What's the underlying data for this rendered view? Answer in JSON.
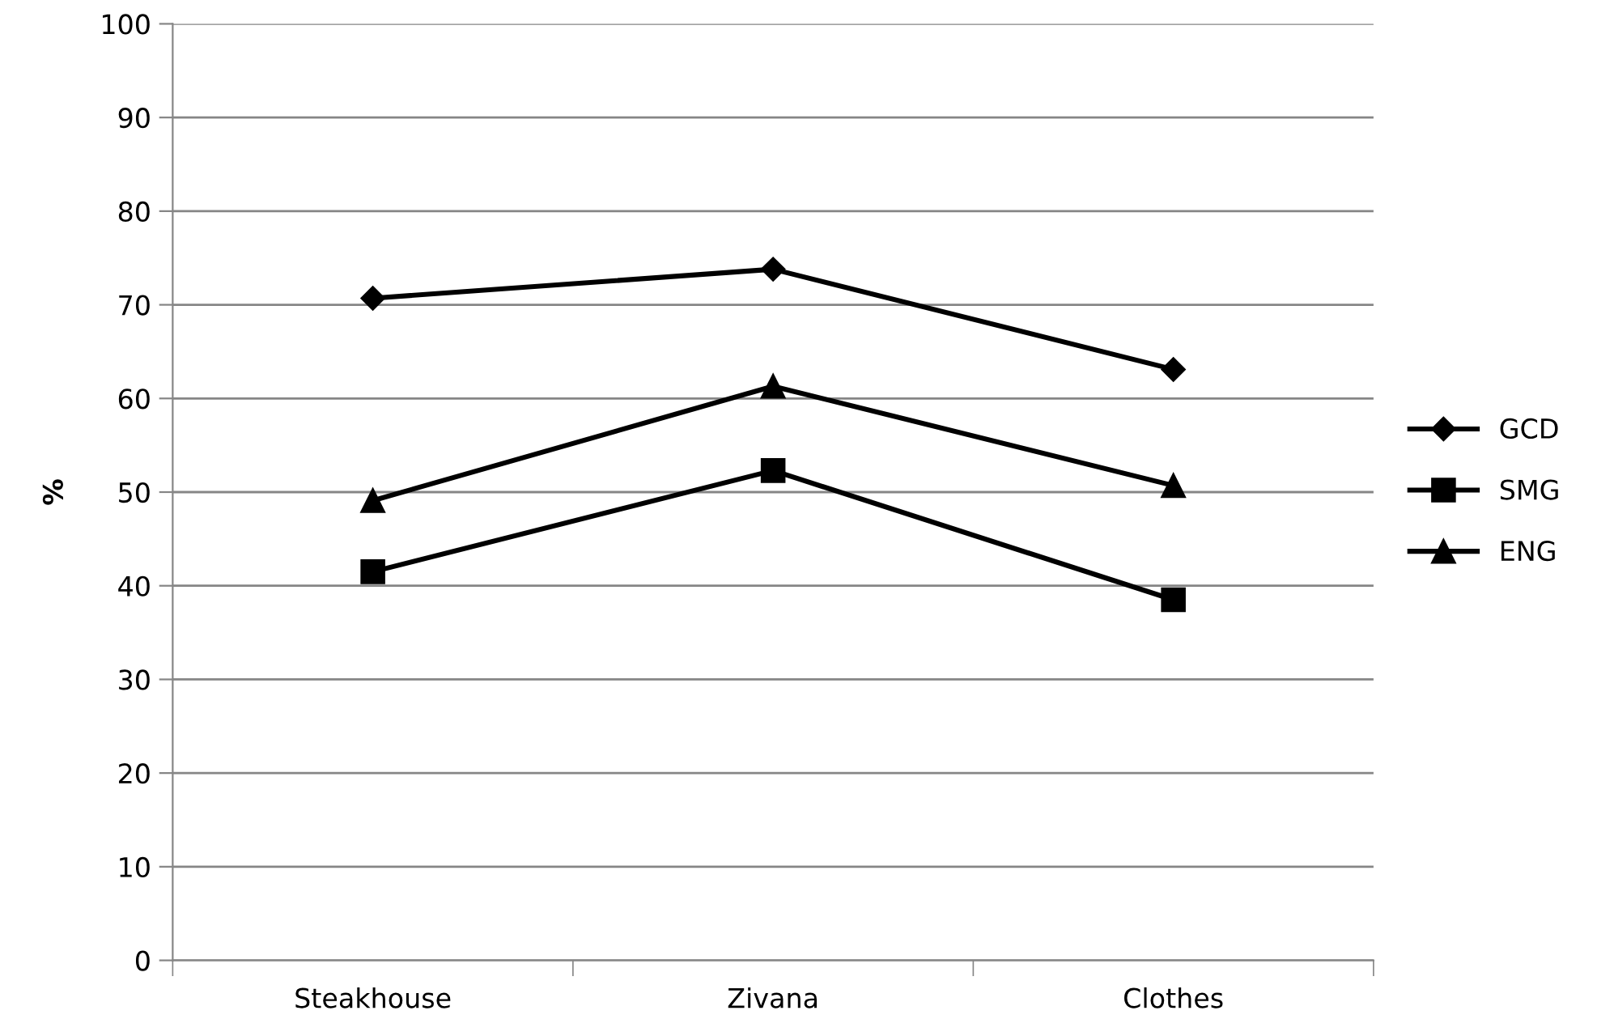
{
  "chart_data": {
    "type": "line",
    "ylabel": "%",
    "categories": [
      "Steakhouse",
      "Zivana",
      "Clothes"
    ],
    "series": [
      {
        "name": "GCD",
        "color": "#000000",
        "marker": "diamond",
        "values": [
          70.7,
          73.8,
          63.1
        ]
      },
      {
        "name": "SMG",
        "color": "#000000",
        "marker": "square",
        "values": [
          41.5,
          52.3,
          38.5
        ]
      },
      {
        "name": "ENG",
        "color": "#000000",
        "marker": "triangle",
        "values": [
          49.1,
          61.3,
          50.7
        ]
      }
    ],
    "ylim": [
      0,
      100
    ],
    "yticks": [
      0,
      10,
      20,
      30,
      40,
      50,
      60,
      70,
      80,
      90,
      100
    ],
    "grid": "y",
    "legend": "right",
    "line_style": "solid"
  }
}
